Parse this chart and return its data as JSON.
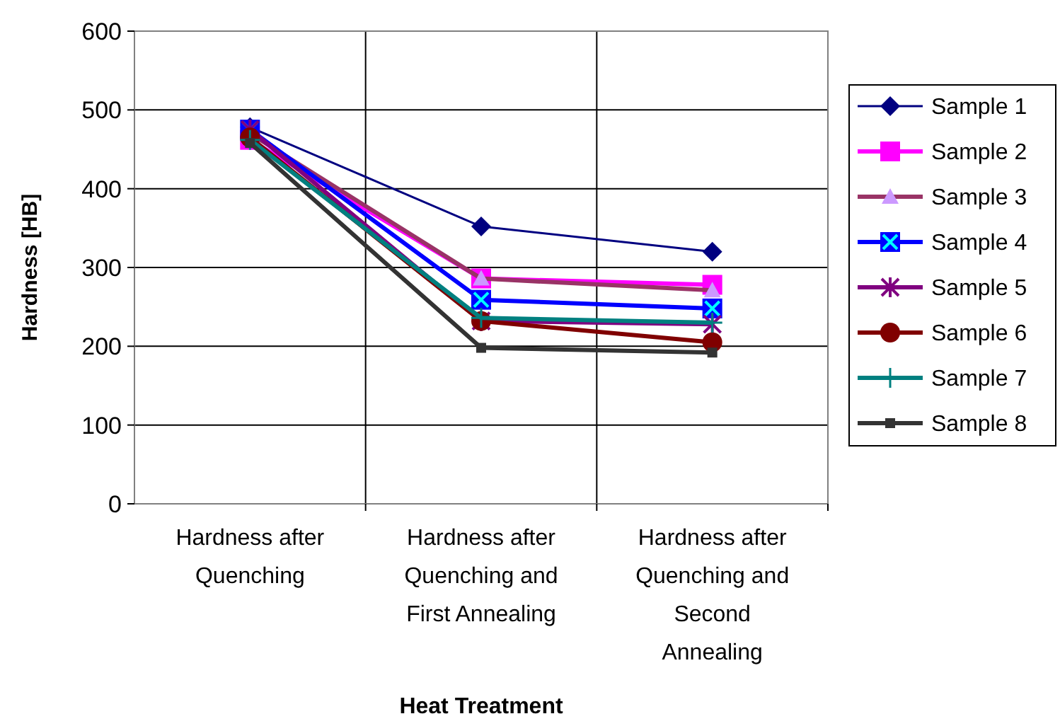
{
  "chart_data": {
    "type": "line",
    "xlabel": "Heat Treatment",
    "ylabel": "Hardness [HB]",
    "categories": [
      "Hardness after Quenching",
      "Hardness after Quenching and First Annealing",
      "Hardness after Quenching and Second Annealing"
    ],
    "ylim": [
      0,
      600
    ],
    "yticks": [
      0,
      100,
      200,
      300,
      400,
      500,
      600
    ],
    "grid": true,
    "legend": "right",
    "series": [
      {
        "name": "Sample 1",
        "color": "#000080",
        "marker": "diamond",
        "values": [
          478,
          352,
          320
        ]
      },
      {
        "name": "Sample 2",
        "color": "#ff00ff",
        "marker": "square",
        "values": [
          462,
          286,
          278
        ]
      },
      {
        "name": "Sample 3",
        "color": "#993366",
        "marker": "triangle",
        "values": [
          470,
          286,
          271
        ]
      },
      {
        "name": "Sample 4",
        "color": "#0000ff",
        "marker": "square",
        "values": [
          475,
          259,
          248
        ]
      },
      {
        "name": "Sample 5",
        "color": "#800080",
        "marker": "cross",
        "values": [
          475,
          232,
          228
        ]
      },
      {
        "name": "Sample 6",
        "color": "#800000",
        "marker": "circle",
        "values": [
          465,
          232,
          205
        ]
      },
      {
        "name": "Sample 7",
        "color": "#008080",
        "marker": "cross",
        "values": [
          462,
          236,
          230
        ]
      },
      {
        "name": "Sample 8",
        "color": "#333333",
        "marker": "square",
        "values": [
          458,
          198,
          192
        ]
      }
    ]
  }
}
